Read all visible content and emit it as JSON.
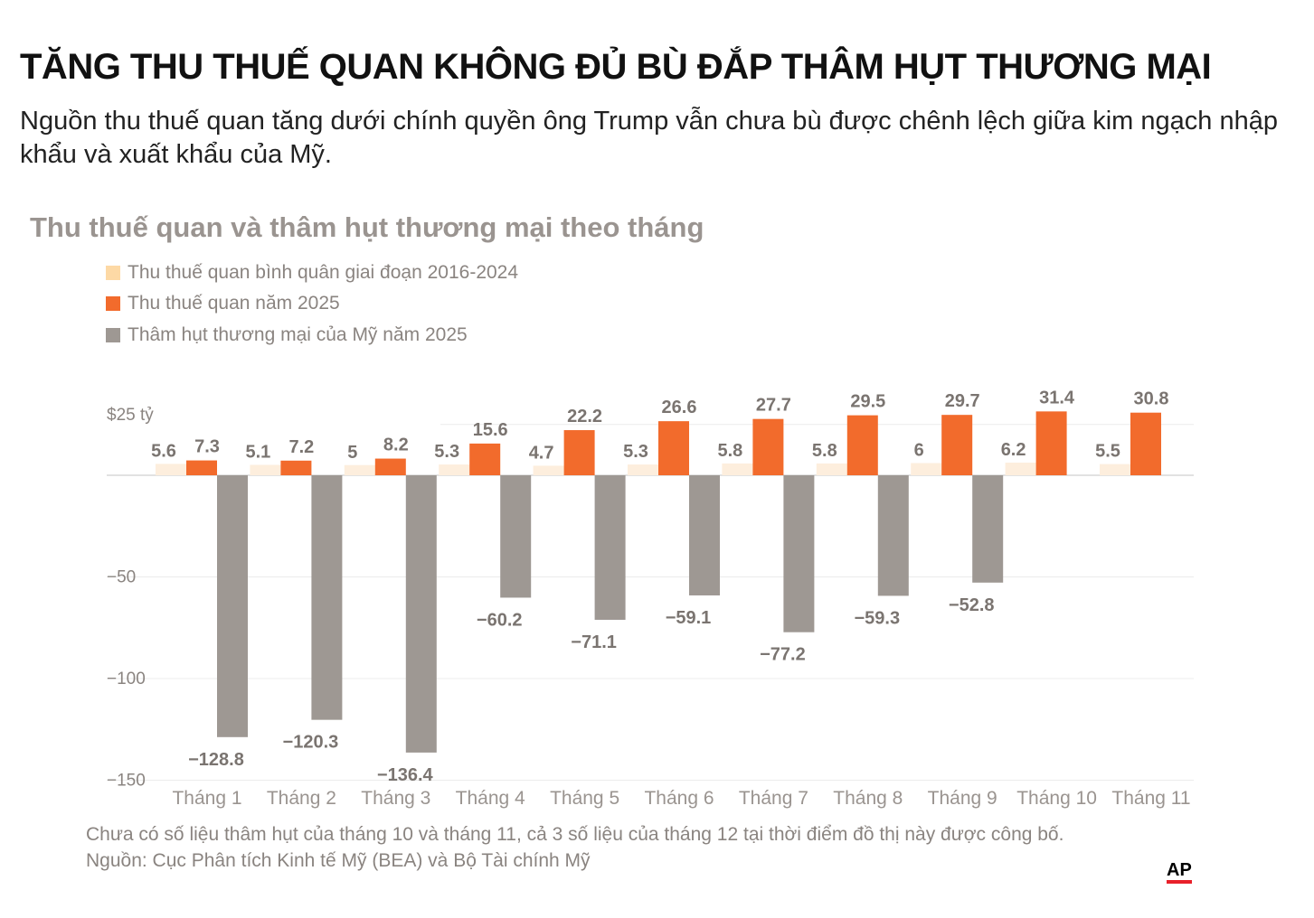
{
  "header": {
    "title": "TĂNG THU THUẾ QUAN KHÔNG ĐỦ BÙ ĐẮP THÂM HỤT THƯƠNG MẠI",
    "subtitle": "Nguồn thu thuế quan tăng dưới chính quyền ông Trump vẫn chưa bù được chênh lệch giữa kim ngạch nhập khẩu và xuất khẩu của Mỹ."
  },
  "chart_data": {
    "type": "bar",
    "title": "Thu thuế quan và thâm hụt thương mại theo tháng",
    "categories": [
      "Tháng 1",
      "Tháng 2",
      "Tháng 3",
      "Tháng 4",
      "Tháng 5",
      "Tháng 6",
      "Tháng 7",
      "Tháng 8",
      "Tháng 9",
      "Tháng 10",
      "Tháng 11"
    ],
    "series": [
      {
        "name": "Thu thuế quan bình quân giai đoạn 2016-2024",
        "color": "#fdeedd",
        "values": [
          5.6,
          5.1,
          5,
          5.3,
          4.7,
          5.3,
          5.8,
          5.8,
          6,
          6.2,
          5.5
        ]
      },
      {
        "name": "Thu thuế quan năm 2025",
        "color": "#f26b2c",
        "values": [
          7.3,
          7.2,
          8.2,
          15.6,
          22.2,
          26.6,
          27.7,
          29.5,
          29.7,
          31.4,
          30.8
        ]
      },
      {
        "name": "Thâm hụt thương mại của Mỹ năm 2025",
        "color": "#9e9893",
        "values": [
          -128.8,
          -120.3,
          -136.4,
          -60.2,
          -71.1,
          -59.1,
          -77.2,
          -59.3,
          -52.8,
          null,
          null
        ]
      }
    ],
    "yticks": [
      {
        "v": 25,
        "label": "$25 tỷ"
      },
      {
        "v": -50,
        "label": "−50"
      },
      {
        "v": -100,
        "label": "−100"
      },
      {
        "v": -150,
        "label": "−150"
      }
    ],
    "ylim": [
      -150,
      35
    ],
    "grid": true,
    "legend": "top-left"
  },
  "notes": {
    "note": "Chưa có số liệu thâm hụt của tháng 10 và tháng 11, cả 3 số liệu của tháng 12 tại thời điểm đồ thị này được công bố.",
    "source": "Nguồn: Cục Phân tích Kinh tế Mỹ (BEA) và Bộ Tài chính Mỹ",
    "logo": "AP"
  }
}
